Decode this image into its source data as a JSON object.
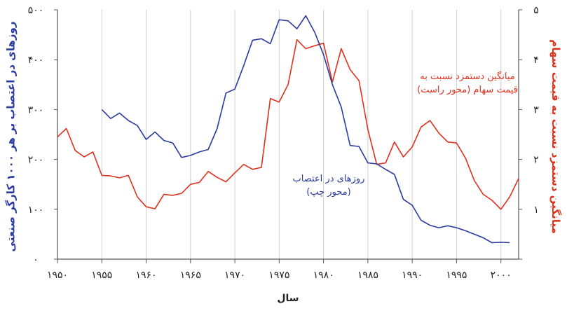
{
  "chart_data": {
    "type": "line",
    "xlabel": "سال",
    "ylabel_left": "روزهای در اعتصاب بر هر ۱۰۰۰ کارگر صنعتی",
    "ylabel_right": "میانگین دستمزد نسبت به قیمت سهام",
    "xlim": [
      1950,
      2002
    ],
    "ylim_left": [
      0,
      500
    ],
    "ylim_right": [
      0,
      5
    ],
    "x_ticks": [
      1950,
      1955,
      1960,
      1965,
      1970,
      1975,
      1980,
      1985,
      1990,
      1995,
      2000
    ],
    "x_tick_labels": [
      "۱۹۵۰",
      "۱۹۵۵",
      "۱۹۶۰",
      "۱۹۶۵",
      "۱۹۷۰",
      "۱۹۷۵",
      "۱۹۸۰",
      "۱۹۸۵",
      "۱۹۹۰",
      "۱۹۹۵",
      "۲۰۰۰"
    ],
    "y_left_ticks": [
      0,
      100,
      200,
      300,
      400,
      500
    ],
    "y_left_tick_labels": [
      "۰",
      "۱۰۰",
      "۲۰۰",
      "۳۰۰",
      "۴۰۰",
      "۵۰۰"
    ],
    "y_right_ticks": [
      0,
      1,
      2,
      3,
      4,
      5
    ],
    "y_right_tick_labels": [
      "",
      "۱",
      "۲",
      "۳",
      "۴",
      "۵"
    ],
    "grid": "vertical",
    "colors": {
      "strike": "#2b3aa1",
      "wage": "#e0301e",
      "grid": "#d0d0d0",
      "axis": "#555555"
    },
    "series": [
      {
        "key": "strike",
        "axis": "left",
        "annotation": [
          "روزهای در اعتصاب",
          "(محور چپ)"
        ],
        "x": [
          1955,
          1956,
          1957,
          1958,
          1959,
          1960,
          1961,
          1962,
          1963,
          1964,
          1965,
          1966,
          1967,
          1968,
          1969,
          1970,
          1971,
          1972,
          1973,
          1974,
          1975,
          1976,
          1977,
          1978,
          1979,
          1980,
          1981,
          1982,
          1983,
          1984,
          1985,
          1986,
          1987,
          1988,
          1989,
          1990,
          1991,
          1992,
          1993,
          1994,
          1995,
          1996,
          1997,
          1998,
          1999,
          2000,
          2001
        ],
        "y": [
          300,
          282,
          293,
          278,
          268,
          240,
          255,
          238,
          233,
          204,
          208,
          215,
          220,
          262,
          333,
          341,
          388,
          439,
          442,
          432,
          480,
          478,
          462,
          488,
          455,
          410,
          350,
          305,
          228,
          226,
          193,
          191,
          180,
          170,
          120,
          108,
          78,
          68,
          63,
          67,
          63,
          57,
          50,
          43,
          33,
          34,
          33
        ]
      },
      {
        "key": "wage",
        "axis": "right",
        "annotation": [
          "میانگین دستمزد نسبت به",
          "قیمت سهام (محور راست)"
        ],
        "x": [
          1950,
          1951,
          1952,
          1953,
          1954,
          1955,
          1956,
          1957,
          1958,
          1959,
          1960,
          1961,
          1962,
          1963,
          1964,
          1965,
          1966,
          1967,
          1968,
          1969,
          1970,
          1971,
          1972,
          1973,
          1974,
          1975,
          1976,
          1977,
          1978,
          1979,
          1980,
          1981,
          1982,
          1983,
          1984,
          1985,
          1986,
          1987,
          1988,
          1989,
          1990,
          1991,
          1992,
          1993,
          1994,
          1995,
          1996,
          1997,
          1998,
          1999,
          2000,
          2001,
          2002
        ],
        "y": [
          2.45,
          2.62,
          2.18,
          2.05,
          2.15,
          1.68,
          1.67,
          1.63,
          1.68,
          1.25,
          1.05,
          1.01,
          1.3,
          1.28,
          1.32,
          1.5,
          1.54,
          1.76,
          1.64,
          1.55,
          1.73,
          1.9,
          1.8,
          1.84,
          3.22,
          3.15,
          3.5,
          4.4,
          4.22,
          4.28,
          4.33,
          3.55,
          4.22,
          3.8,
          3.58,
          2.6,
          1.9,
          1.93,
          2.35,
          2.05,
          2.25,
          2.65,
          2.78,
          2.53,
          2.35,
          2.33,
          2.03,
          1.58,
          1.3,
          1.18,
          1.0,
          1.25,
          1.62
        ]
      }
    ]
  }
}
